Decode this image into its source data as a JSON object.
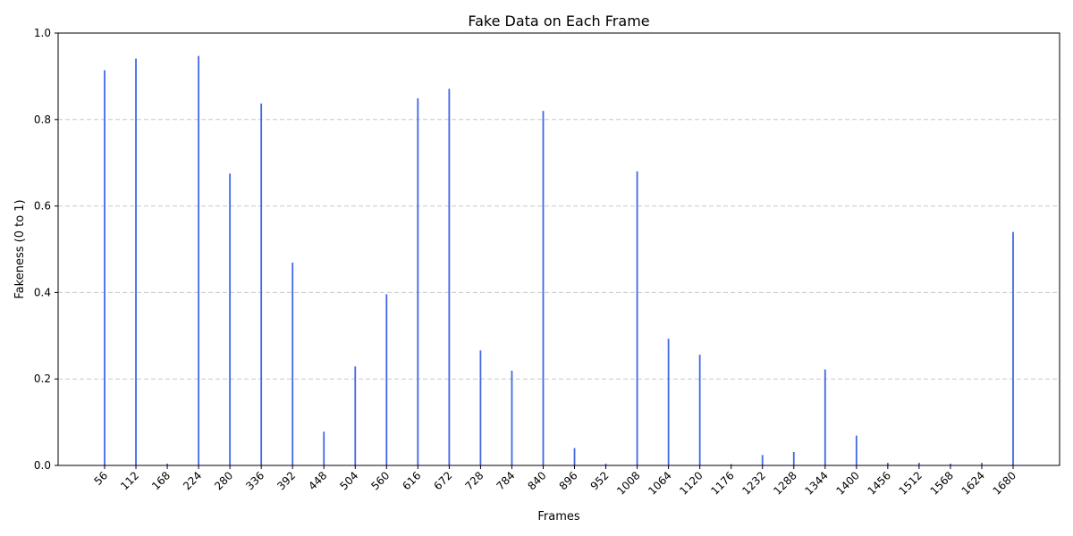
{
  "chart_data": {
    "type": "bar",
    "title": "Fake Data on Each Frame",
    "xlabel": "Frames",
    "ylabel": "Fakeness (0 to 1)",
    "ylim": [
      0,
      1
    ],
    "grid": "y-dashed",
    "bar_color": "#4169e1",
    "x_ticks": [
      56,
      112,
      168,
      224,
      280,
      336,
      392,
      448,
      504,
      560,
      616,
      672,
      728,
      784,
      840,
      896,
      952,
      1008,
      1064,
      1120,
      1176,
      1232,
      1288,
      1344,
      1400,
      1456,
      1512,
      1568,
      1624,
      1680
    ],
    "y_ticks": [
      "0.0",
      "0.2",
      "0.4",
      "0.6",
      "0.8",
      "1.0"
    ],
    "values": [
      0.914,
      0.941,
      0.004,
      0.947,
      0.675,
      0.837,
      0.469,
      0.078,
      0.229,
      0.396,
      0.849,
      0.871,
      0.266,
      0.219,
      0.82,
      0.04,
      0.004,
      0.68,
      0.293,
      0.256,
      0.003,
      0.024,
      0.031,
      0.222,
      0.069,
      0.006,
      0.006,
      0.004,
      0.006,
      0.54
    ]
  }
}
